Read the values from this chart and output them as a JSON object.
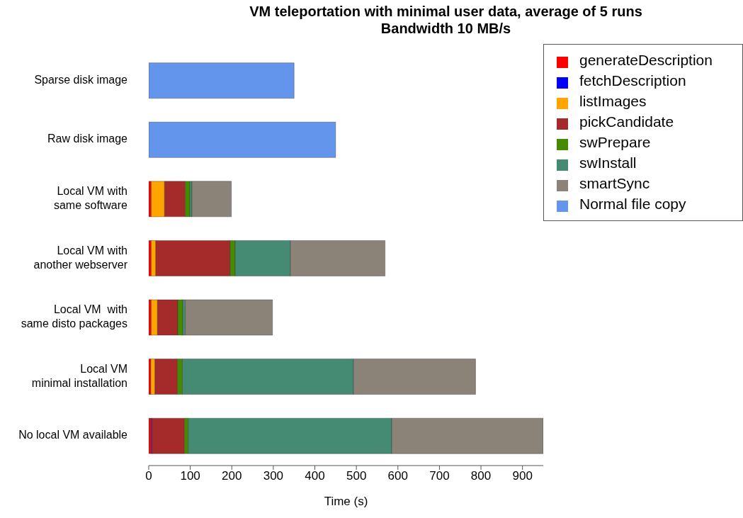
{
  "chart_data": {
    "type": "bar",
    "orientation": "horizontal",
    "stacked": true,
    "title": "VM teleportation with minimal user data, average of 5 runs",
    "subtitle": "Bandwidth 10 MB/s",
    "xlabel": "Time (s)",
    "categories": [
      "Sparse disk image",
      "Raw disk image",
      "Local VM with\nsame software",
      "Local VM with\nanother webserver",
      "Local VM  with\nsame disto packages",
      "Local VM\nminimal installation",
      "No local VM available"
    ],
    "series": [
      {
        "name": "generateDescription",
        "color": "#ff0000",
        "values": [
          null,
          null,
          6,
          6,
          6,
          5,
          6
        ]
      },
      {
        "name": "fetchDescription",
        "color": "#0000ff",
        "values": [
          null,
          null,
          0,
          0,
          0,
          0,
          2
        ]
      },
      {
        "name": "listImages",
        "color": "#ffa500",
        "values": [
          null,
          null,
          32,
          11,
          15,
          10,
          0
        ]
      },
      {
        "name": "pickCandidate",
        "color": "#a52a2a",
        "values": [
          null,
          null,
          50,
          179,
          49,
          54,
          78
        ]
      },
      {
        "name": "swPrepare",
        "color": "#458b00",
        "values": [
          null,
          null,
          11,
          12,
          12,
          12,
          9
        ]
      },
      {
        "name": "swInstall",
        "color": "#458b74",
        "values": [
          null,
          null,
          5,
          133,
          6,
          412,
          490
        ]
      },
      {
        "name": "smartSync",
        "color": "#8b8378",
        "values": [
          null,
          null,
          95,
          228,
          210,
          294,
          365
        ]
      },
      {
        "name": "Normal file copy",
        "color": "#6495ed",
        "values": [
          350,
          450,
          null,
          null,
          null,
          null,
          null
        ]
      }
    ],
    "xlim": [
      0,
      950
    ],
    "xticks": [
      0,
      100,
      200,
      300,
      400,
      500,
      600,
      700,
      800,
      900
    ],
    "grid": false,
    "legend": "top right"
  }
}
